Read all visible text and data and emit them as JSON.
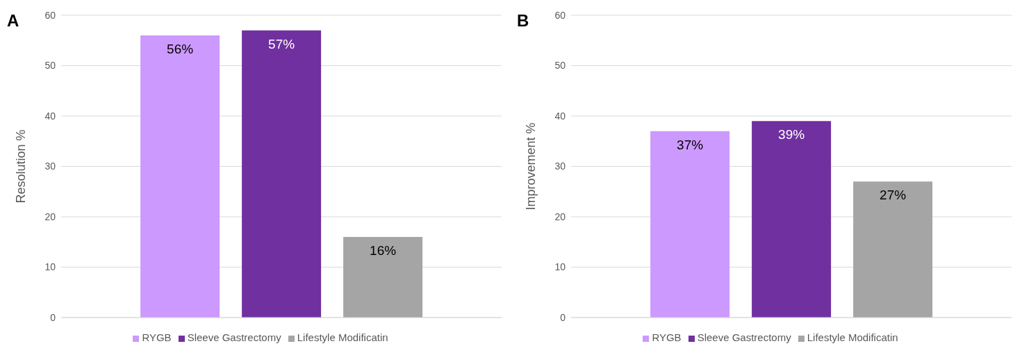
{
  "chart_data": [
    {
      "type": "bar",
      "title": "A",
      "ylabel": "Resolution %",
      "categories": [
        null
      ],
      "ylim": [
        0,
        60
      ],
      "yticks": [
        0,
        10,
        20,
        30,
        40,
        50,
        60
      ],
      "grid": "y",
      "legend": "bottom",
      "series": [
        {
          "name": "RYGB",
          "color": "#cc99ff",
          "values": [
            56
          ],
          "value_labels": [
            "56%"
          ]
        },
        {
          "name": "Sleeve Gastrectomy",
          "color": "#7030a0",
          "values": [
            57
          ],
          "value_labels": [
            "57%"
          ]
        },
        {
          "name": "Lifestyle Modificatin",
          "color": "#a5a5a5",
          "values": [
            16
          ],
          "value_labels": [
            "16%"
          ]
        }
      ]
    },
    {
      "type": "bar",
      "title": "B",
      "ylabel": "Improvement %",
      "categories": [
        null
      ],
      "ylim": [
        0,
        60
      ],
      "yticks": [
        0,
        10,
        20,
        30,
        40,
        50,
        60
      ],
      "grid": "y",
      "legend": "bottom",
      "series": [
        {
          "name": "RYGB",
          "color": "#cc99ff",
          "values": [
            37
          ],
          "value_labels": [
            "37%"
          ]
        },
        {
          "name": "Sleeve Gastrectomy",
          "color": "#7030a0",
          "values": [
            39
          ],
          "value_labels": [
            "39%"
          ]
        },
        {
          "name": "Lifestyle Modificatin",
          "color": "#a5a5a5",
          "values": [
            27
          ],
          "value_labels": [
            "27%"
          ]
        }
      ]
    }
  ]
}
